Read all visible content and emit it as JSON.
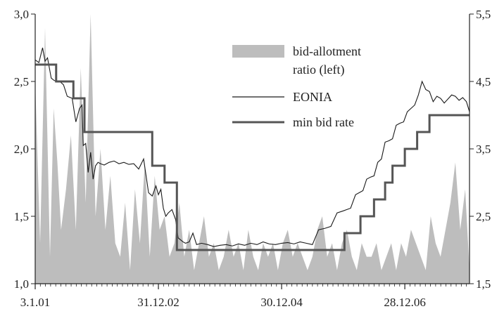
{
  "chart_data": {
    "type": "area",
    "title": "",
    "xlabel": "",
    "ylabel_left": "",
    "ylabel_right": "",
    "x_tick_labels": [
      "3.1.01",
      "31.12.02",
      "30.12.04",
      "28.12.06"
    ],
    "x_tick_positions_years": [
      0,
      2,
      4,
      6
    ],
    "x_range_years": [
      0,
      7.05
    ],
    "left_axis": {
      "range": [
        1.0,
        3.0
      ],
      "ticks": [
        1.0,
        1.5,
        2.0,
        2.5,
        3.0
      ],
      "tick_labels": [
        "1,0",
        "1,5",
        "2,0",
        "2,5",
        "3,0"
      ]
    },
    "right_axis": {
      "range": [
        1.5,
        5.5
      ],
      "ticks": [
        1.5,
        2.5,
        3.5,
        4.5,
        5.5
      ],
      "tick_labels": [
        "1,5",
        "2,5",
        "3,5",
        "4,5",
        "5,5"
      ]
    },
    "grid": false,
    "legend_placement": "top-right",
    "legend": {
      "bid_allotment": "bid-allotment",
      "bid_allotment_line2": "ratio (left)",
      "eonia": "EONIA",
      "min_bid": "min bid rate"
    },
    "colors": {
      "bid_allotment": "#bdbdbd",
      "eonia": "#1a1a1a",
      "min_bid": "#555555"
    },
    "series": [
      {
        "name": "bid-allotment ratio (left)",
        "axis": "left",
        "style": "area",
        "x": [
          0.0,
          0.08,
          0.16,
          0.24,
          0.3,
          0.36,
          0.42,
          0.5,
          0.58,
          0.66,
          0.74,
          0.82,
          0.9,
          0.98,
          1.06,
          1.14,
          1.22,
          1.3,
          1.38,
          1.46,
          1.54,
          1.62,
          1.7,
          1.78,
          1.86,
          1.94,
          2.02,
          2.1,
          2.18,
          2.26,
          2.34,
          2.42,
          2.5,
          2.58,
          2.66,
          2.74,
          2.82,
          2.9,
          2.98,
          3.06,
          3.14,
          3.22,
          3.3,
          3.38,
          3.46,
          3.54,
          3.62,
          3.7,
          3.78,
          3.86,
          3.94,
          4.02,
          4.1,
          4.18,
          4.26,
          4.34,
          4.42,
          4.5,
          4.58,
          4.66,
          4.74,
          4.82,
          4.9,
          4.98,
          5.06,
          5.14,
          5.22,
          5.3,
          5.38,
          5.46,
          5.54,
          5.62,
          5.7,
          5.78,
          5.86,
          5.94,
          6.02,
          6.1,
          6.18,
          6.26,
          6.34,
          6.42,
          6.5,
          6.58,
          6.66,
          6.74,
          6.82,
          6.9,
          6.98,
          7.05
        ],
        "values": [
          2.5,
          1.3,
          2.9,
          1.2,
          2.3,
          1.9,
          1.4,
          1.7,
          2.1,
          1.4,
          2.6,
          1.6,
          3.0,
          1.5,
          2.0,
          1.4,
          1.8,
          1.3,
          1.2,
          1.6,
          1.1,
          1.7,
          1.3,
          1.9,
          1.2,
          1.8,
          1.4,
          1.5,
          1.2,
          1.3,
          1.6,
          1.2,
          1.4,
          1.1,
          1.3,
          1.5,
          1.2,
          1.3,
          1.1,
          1.2,
          1.4,
          1.2,
          1.3,
          1.1,
          1.4,
          1.2,
          1.1,
          1.3,
          1.2,
          1.3,
          1.1,
          1.3,
          1.4,
          1.2,
          1.3,
          1.2,
          1.1,
          1.2,
          1.4,
          1.5,
          1.2,
          1.3,
          1.1,
          1.3,
          1.4,
          1.2,
          1.1,
          1.3,
          1.2,
          1.2,
          1.3,
          1.1,
          1.2,
          1.3,
          1.1,
          1.3,
          1.2,
          1.4,
          1.3,
          1.2,
          1.1,
          1.5,
          1.3,
          1.2,
          1.4,
          1.6,
          1.9,
          1.4,
          1.7,
          1.1
        ]
      },
      {
        "name": "EONIA",
        "axis": "right",
        "style": "thin-line",
        "x": [
          0.0,
          0.06,
          0.12,
          0.16,
          0.2,
          0.26,
          0.3,
          0.34,
          0.4,
          0.46,
          0.52,
          0.6,
          0.66,
          0.72,
          0.76,
          0.78,
          0.82,
          0.86,
          0.9,
          0.94,
          0.98,
          1.02,
          1.06,
          1.12,
          1.2,
          1.28,
          1.36,
          1.44,
          1.52,
          1.6,
          1.68,
          1.76,
          1.84,
          1.9,
          1.96,
          2.0,
          2.04,
          2.08,
          2.12,
          2.16,
          2.22,
          2.28,
          2.32,
          2.36,
          2.4,
          2.44,
          2.5,
          2.56,
          2.62,
          2.7,
          2.8,
          2.9,
          3.0,
          3.1,
          3.2,
          3.3,
          3.4,
          3.5,
          3.6,
          3.7,
          3.8,
          3.9,
          4.0,
          4.1,
          4.2,
          4.3,
          4.4,
          4.5,
          4.6,
          4.7,
          4.8,
          4.9,
          5.0,
          5.06,
          5.12,
          5.2,
          5.26,
          5.32,
          5.38,
          5.44,
          5.5,
          5.56,
          5.62,
          5.68,
          5.74,
          5.8,
          5.86,
          5.92,
          5.98,
          6.04,
          6.1,
          6.16,
          6.22,
          6.28,
          6.34,
          6.4,
          6.46,
          6.52,
          6.58,
          6.64,
          6.7,
          6.76,
          6.82,
          6.88,
          6.94,
          7.0,
          7.05
        ],
        "values": [
          4.82,
          4.78,
          5.0,
          4.8,
          4.85,
          4.55,
          4.52,
          4.5,
          4.5,
          4.45,
          4.28,
          4.25,
          3.9,
          4.1,
          4.15,
          3.55,
          3.58,
          3.15,
          3.45,
          3.05,
          3.25,
          3.3,
          3.28,
          3.26,
          3.3,
          3.32,
          3.28,
          3.3,
          3.27,
          3.28,
          3.2,
          3.35,
          2.85,
          2.8,
          2.95,
          2.82,
          2.9,
          2.62,
          2.5,
          2.55,
          2.6,
          2.45,
          2.18,
          2.15,
          2.12,
          2.1,
          2.12,
          2.25,
          2.08,
          2.1,
          2.08,
          2.05,
          2.07,
          2.08,
          2.06,
          2.09,
          2.07,
          2.1,
          2.08,
          2.12,
          2.09,
          2.08,
          2.1,
          2.11,
          2.09,
          2.12,
          2.1,
          2.08,
          2.3,
          2.32,
          2.35,
          2.55,
          2.58,
          2.6,
          2.62,
          2.82,
          2.85,
          2.88,
          3.05,
          3.08,
          3.1,
          3.3,
          3.35,
          3.6,
          3.62,
          3.65,
          3.85,
          3.88,
          3.9,
          4.05,
          4.1,
          4.15,
          4.3,
          4.5,
          4.38,
          4.35,
          4.2,
          4.28,
          4.25,
          4.18,
          4.24,
          4.3,
          4.28,
          4.22,
          4.26,
          4.2,
          4.05
        ]
      },
      {
        "name": "min bid rate",
        "axis": "right",
        "style": "thick-step",
        "x": [
          0.0,
          0.34,
          0.62,
          0.8,
          1.9,
          2.1,
          2.3,
          5.02,
          5.28,
          5.5,
          5.68,
          5.8,
          6.0,
          6.2,
          6.4,
          7.05
        ],
        "values": [
          4.75,
          4.5,
          4.25,
          3.75,
          3.25,
          3.0,
          2.0,
          2.25,
          2.5,
          2.75,
          3.0,
          3.25,
          3.5,
          3.75,
          4.0,
          4.0
        ]
      }
    ]
  }
}
